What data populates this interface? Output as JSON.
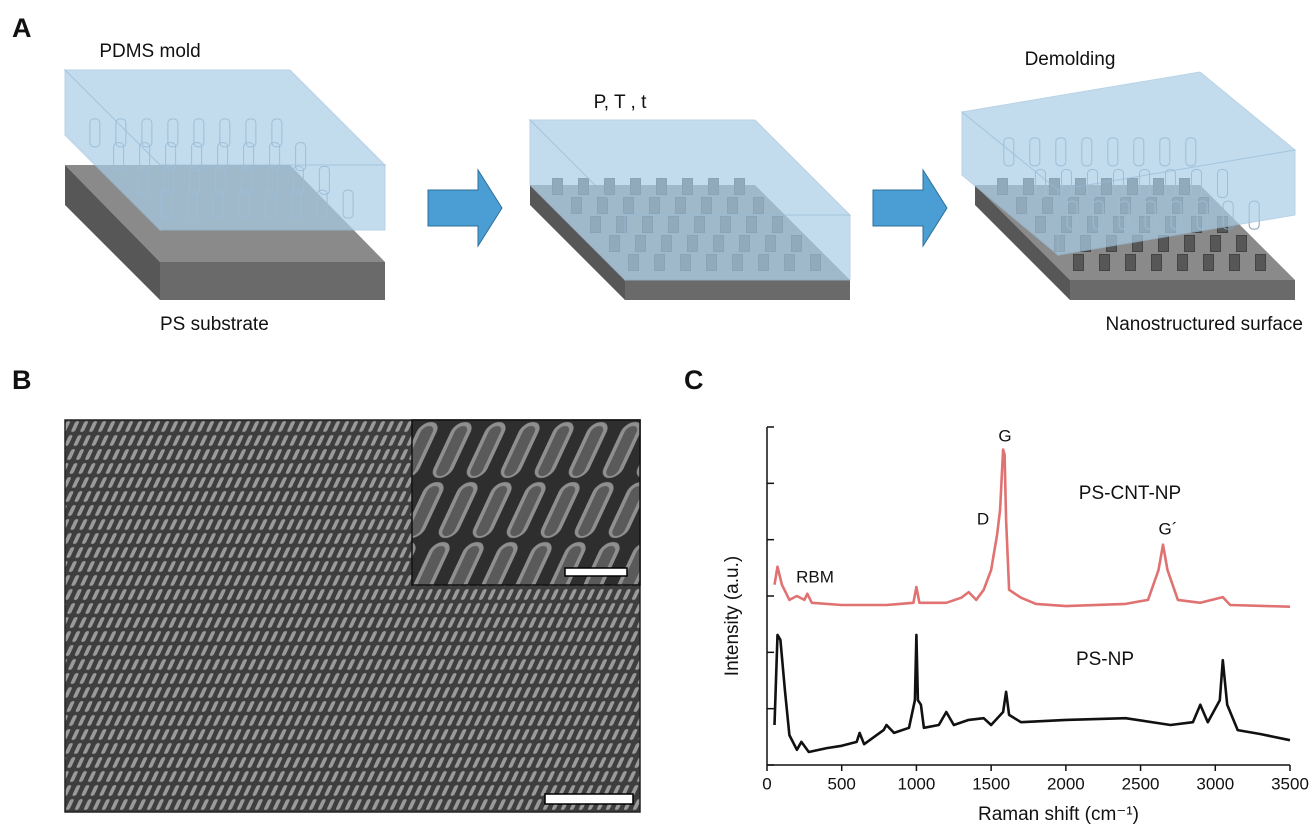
{
  "panel_labels": [
    "A",
    "B",
    "C"
  ],
  "panel_a": {
    "labels": [
      "PDMS mold",
      "PS substrate",
      "P, T , t",
      "Demolding",
      "Nanostructured surface"
    ]
  },
  "chart_data": {
    "type": "line",
    "xlabel": "Raman shift (cm⁻¹)",
    "ylabel": "Intensity (a.u.)",
    "xlim": [
      0,
      3500
    ],
    "xticks": [
      0,
      500,
      1000,
      1500,
      2000,
      2500,
      3000,
      3500
    ],
    "ylim": [
      0,
      6
    ],
    "yticks": [
      0,
      1,
      2,
      3,
      4,
      5,
      6
    ],
    "annotations": [
      "G",
      "D",
      "G´",
      "RBM"
    ],
    "series": [
      {
        "name": "PS-CNT-NP",
        "color": "#e07272",
        "x": [
          50,
          70,
          100,
          150,
          200,
          250,
          270,
          300,
          500,
          800,
          980,
          1000,
          1020,
          1200,
          1300,
          1350,
          1400,
          1450,
          1500,
          1540,
          1560,
          1580,
          1590,
          1600,
          1620,
          1700,
          1800,
          2000,
          2400,
          2550,
          2620,
          2650,
          2680,
          2750,
          2900,
          3050,
          3100,
          3500
        ],
        "values": [
          3.2,
          3.52,
          3.2,
          2.93,
          3.0,
          2.93,
          3.04,
          2.88,
          2.84,
          2.84,
          2.88,
          3.16,
          2.88,
          2.88,
          2.97,
          3.07,
          2.93,
          3.11,
          3.46,
          4.09,
          4.53,
          5.6,
          5.51,
          4.35,
          3.11,
          2.97,
          2.86,
          2.82,
          2.86,
          2.93,
          3.46,
          3.91,
          3.46,
          2.93,
          2.88,
          2.98,
          2.84,
          2.81
        ]
      },
      {
        "name": "PS-NP",
        "color": "#111111",
        "x": [
          50,
          70,
          90,
          120,
          150,
          200,
          230,
          280,
          400,
          500,
          600,
          620,
          650,
          780,
          800,
          850,
          950,
          990,
          1000,
          1010,
          1030,
          1050,
          1150,
          1200,
          1250,
          1350,
          1450,
          1500,
          1580,
          1600,
          1620,
          1700,
          2000,
          2400,
          2700,
          2850,
          2900,
          2950,
          3030,
          3050,
          3080,
          3150,
          3300,
          3500
        ],
        "values": [
          0.71,
          2.31,
          2.22,
          1.33,
          0.53,
          0.27,
          0.41,
          0.23,
          0.3,
          0.34,
          0.41,
          0.57,
          0.37,
          0.62,
          0.71,
          0.57,
          0.66,
          1.15,
          2.31,
          1.15,
          1.07,
          0.66,
          0.71,
          0.94,
          0.71,
          0.8,
          0.83,
          0.71,
          0.94,
          1.3,
          0.89,
          0.76,
          0.8,
          0.83,
          0.71,
          0.76,
          1.07,
          0.76,
          1.15,
          1.86,
          1.07,
          0.62,
          0.55,
          0.44
        ]
      }
    ]
  }
}
